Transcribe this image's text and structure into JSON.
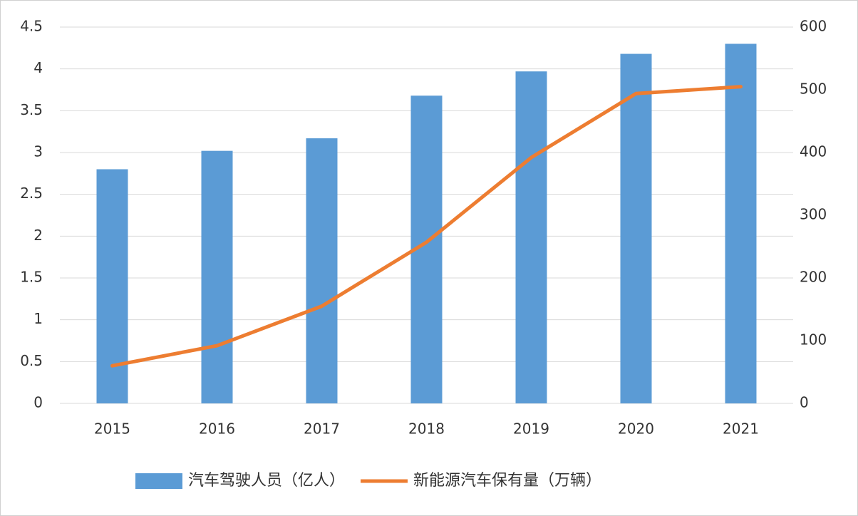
{
  "chart_data": {
    "type": "bar",
    "categories": [
      "2015",
      "2016",
      "2017",
      "2018",
      "2019",
      "2020",
      "2021"
    ],
    "series": [
      {
        "name": "汽车驾驶人员（亿人）",
        "type": "bar",
        "color": "#5b9bd5",
        "values": [
          2.8,
          3.02,
          3.17,
          3.68,
          3.97,
          4.18,
          4.3
        ]
      },
      {
        "name": "新能源汽车保有量（万辆）",
        "type": "line",
        "axis": "y2",
        "color": "#ed7d31",
        "values": [
          60,
          92,
          155,
          257,
          392,
          494,
          505
        ]
      }
    ],
    "ylim": [
      0,
      4.5
    ],
    "yticks": [
      0,
      0.5,
      1,
      1.5,
      2,
      2.5,
      3,
      3.5,
      4,
      4.5
    ],
    "y2lim": [
      0,
      600
    ],
    "y2ticks": [
      0,
      100,
      200,
      300,
      400,
      500,
      600
    ],
    "grid": true,
    "legend": "bottom"
  }
}
